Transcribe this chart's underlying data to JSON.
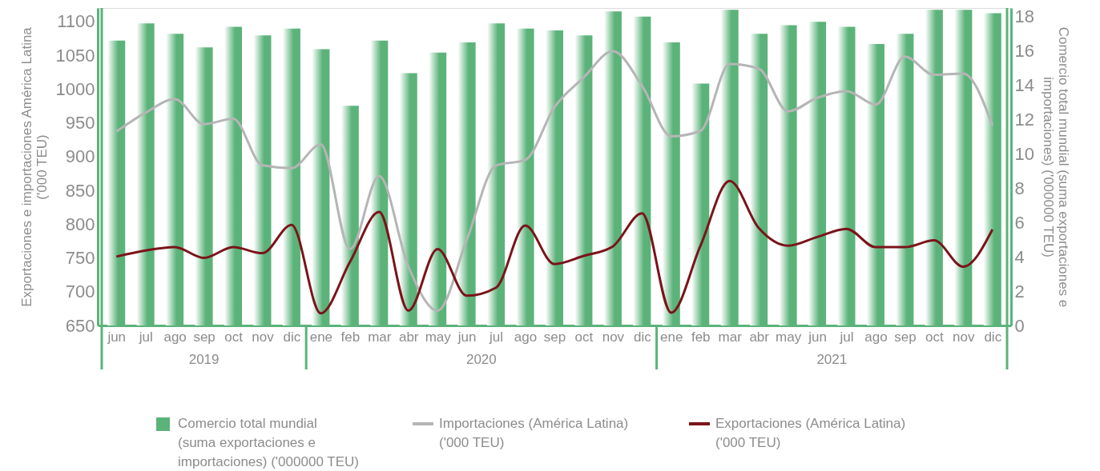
{
  "chart_data": {
    "type": "bar",
    "ylabel": "Exportaciones e importaciones América Latina ('000 TEU)",
    "y2label": "Comercio total mundial (suma exportaciones e importaciones) ('000000 TEU)",
    "categories": [
      "jun",
      "jul",
      "ago",
      "sep",
      "oct",
      "nov",
      "dic",
      "ene",
      "feb",
      "mar",
      "abr",
      "may",
      "jun",
      "jul",
      "ago",
      "sep",
      "oct",
      "nov",
      "dic",
      "ene",
      "feb",
      "mar",
      "abr",
      "may",
      "jun",
      "jul",
      "ago",
      "sep",
      "oct",
      "nov",
      "dic"
    ],
    "series": [
      {
        "name": "Comercio total mundial (suma exportaciones e importaciones) ('000000 TEU)",
        "axis": "y2",
        "color": "#5bb37a",
        "values": [
          16.6,
          17.6,
          17.0,
          16.2,
          17.4,
          16.9,
          17.3,
          16.1,
          12.8,
          16.6,
          14.7,
          15.9,
          16.5,
          17.6,
          17.3,
          17.2,
          16.9,
          18.3,
          18.0,
          16.5,
          14.1,
          18.4,
          17.0,
          17.5,
          17.7,
          17.4,
          16.4,
          17.0,
          18.4,
          18.4,
          18.2
        ]
      },
      {
        "name": "Importaciones (América Latina) ('000 TEU)",
        "type": "line",
        "axis": "y",
        "color": "#b5b5b5",
        "values": [
          937,
          965,
          985,
          948,
          956,
          887,
          883,
          918,
          763,
          871,
          737,
          672,
          777,
          887,
          895,
          973,
          1017,
          1056,
          1005,
          930,
          938,
          1037,
          1030,
          967,
          987,
          997,
          977,
          1048,
          1021,
          1023,
          946
        ]
      },
      {
        "name": "Exportaciones (América Latina) ('000 TEU)",
        "type": "line",
        "axis": "y",
        "color": "#7a1419",
        "values": [
          752,
          761,
          766,
          750,
          766,
          757,
          799,
          668,
          744,
          818,
          672,
          763,
          694,
          706,
          798,
          741,
          753,
          767,
          816,
          669,
          768,
          864,
          794,
          768,
          781,
          793,
          766,
          766,
          776,
          737,
          792
        ]
      }
    ],
    "ylim": [
      650,
      1120
    ],
    "yticks": [
      650,
      700,
      750,
      800,
      850,
      900,
      950,
      1000,
      1050,
      1100
    ],
    "y2lim": [
      0,
      18.5
    ],
    "y2ticks": [
      0,
      2,
      4,
      6,
      8,
      10,
      12,
      14,
      16,
      18
    ],
    "annotations": [
      "2019",
      "2020",
      "2021"
    ],
    "grid": false,
    "legend": "bottom",
    "line_style": "solid"
  }
}
